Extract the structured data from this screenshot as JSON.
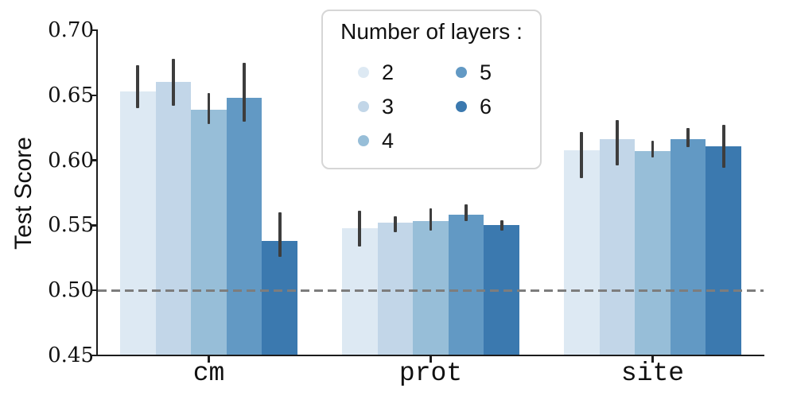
{
  "chart_data": {
    "type": "bar",
    "title": "",
    "ylabel": "Test Score",
    "xlabel": "",
    "categories": [
      "cm",
      "prot",
      "site"
    ],
    "ylim": [
      0.45,
      0.7
    ],
    "yticks": [
      0.45,
      0.5,
      0.55,
      0.6,
      0.65,
      0.7
    ],
    "ytick_labels": [
      "0.45",
      "0.50",
      "0.55",
      "0.60",
      "0.65",
      "0.70"
    ],
    "reference_line": 0.5,
    "reference_line_style": "dashed",
    "reference_line_color": "#7d7d7d",
    "error_bar_color": "#3d3d3d",
    "grid": false,
    "legend": {
      "title": "Number of layers :",
      "position": "upper center",
      "columns": 2,
      "column_order": [
        [
          "2",
          "3",
          "4"
        ],
        [
          "5",
          "6"
        ]
      ]
    },
    "series": [
      {
        "name": "2",
        "color": "#dde9f3",
        "values": [
          0.653,
          0.548,
          0.608
        ],
        "err_lo": [
          0.64,
          0.534,
          0.586
        ],
        "err_hi": [
          0.673,
          0.561,
          0.622
        ]
      },
      {
        "name": "3",
        "color": "#c2d6e8",
        "values": [
          0.66,
          0.552,
          0.616
        ],
        "err_lo": [
          0.642,
          0.545,
          0.596
        ],
        "err_hi": [
          0.678,
          0.557,
          0.631
        ]
      },
      {
        "name": "4",
        "color": "#97bed8",
        "values": [
          0.639,
          0.553,
          0.607
        ],
        "err_lo": [
          0.628,
          0.546,
          0.602
        ],
        "err_hi": [
          0.652,
          0.563,
          0.615
        ]
      },
      {
        "name": "5",
        "color": "#6299c4",
        "values": [
          0.648,
          0.558,
          0.616
        ],
        "err_lo": [
          0.63,
          0.553,
          0.61
        ],
        "err_hi": [
          0.675,
          0.566,
          0.625
        ]
      },
      {
        "name": "6",
        "color": "#3b79af",
        "values": [
          0.538,
          0.55,
          0.611
        ],
        "err_lo": [
          0.526,
          0.546,
          0.594
        ],
        "err_hi": [
          0.56,
          0.554,
          0.627
        ]
      }
    ]
  }
}
